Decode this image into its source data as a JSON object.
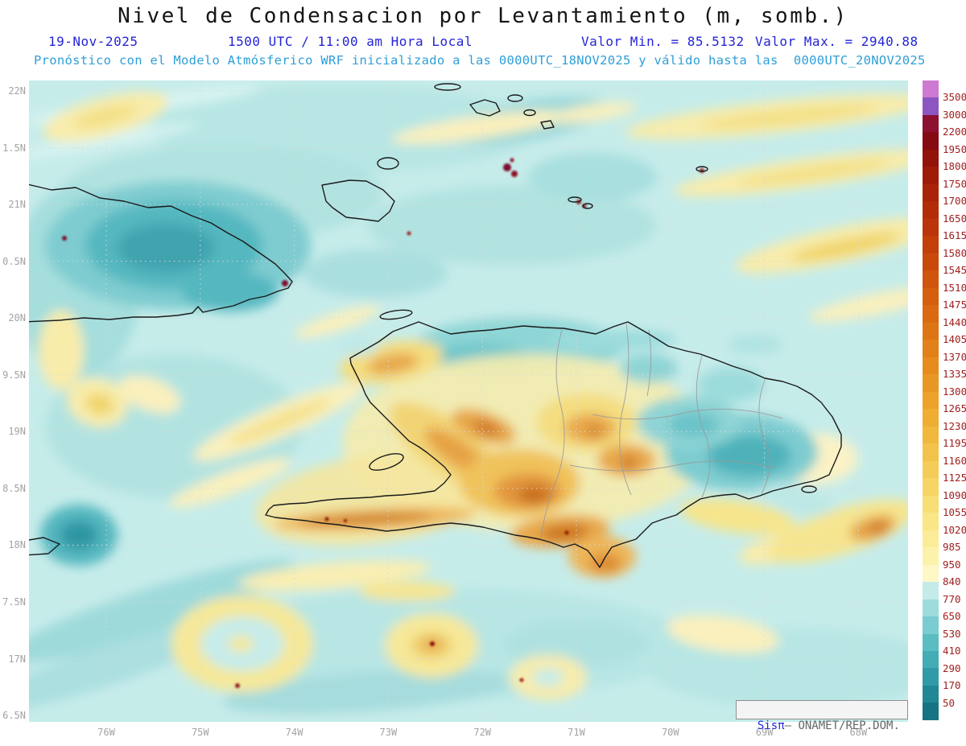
{
  "title": "Nivel de Condensacion por Levantamiento (m, somb.)",
  "header": {
    "date": "19-Nov-2025",
    "time": "1500 UTC / 11:00 am Hora Local",
    "min_label": "Valor Min. = 85.5132",
    "max_label": "Valor Max. = 2940.88",
    "forecast_line": "Pronóstico con el Modelo Atmósferico WRF inicializado a las 0000UTC_18NOV2025 y válido hasta las  0000UTC_20NOV2025"
  },
  "chart_data": {
    "type": "heatmap",
    "subtype": "filled-contour-weather-map",
    "title": "Nivel de Condensacion por Levantamiento (m, somb.)",
    "units": "m",
    "value_min": 85.5132,
    "value_max": 2940.88,
    "model": "WRF",
    "init": "0000UTC_18NOV2025",
    "valid_until": "0000UTC_20NOV2025",
    "x_ticks": [
      "76W",
      "75W",
      "74W",
      "73W",
      "72W",
      "71W",
      "70W",
      "69W",
      "68W"
    ],
    "y_ticks": [
      "22N",
      "1.5N",
      "21N",
      "0.5N",
      "20N",
      "9.5N",
      "19N",
      "8.5N",
      "18N",
      "7.5N",
      "17N",
      "6.5N"
    ],
    "colorbar": {
      "levels": [
        "3500",
        "3000",
        "2200",
        "1950",
        "1800",
        "1750",
        "1700",
        "1650",
        "1615",
        "1580",
        "1545",
        "1510",
        "1475",
        "1440",
        "1405",
        "1370",
        "1335",
        "1300",
        "1265",
        "1230",
        "1195",
        "1160",
        "1125",
        "1090",
        "1055",
        "1020",
        "985",
        "950",
        "840",
        "770",
        "650",
        "530",
        "410",
        "290",
        "170",
        "50"
      ],
      "colors": [
        "#ce79d2",
        "#8d55c2",
        "#8c1030",
        "#850b12",
        "#92130a",
        "#9e1b08",
        "#a82307",
        "#b22c08",
        "#ba3509",
        "#c23f0a",
        "#c9490b",
        "#cf540d",
        "#d55f0f",
        "#da6a12",
        "#de7515",
        "#e28019",
        "#e68b1e",
        "#e99724",
        "#eca22b",
        "#efad34",
        "#f1b83e",
        "#f3c24a",
        "#f5cc57",
        "#f7d565",
        "#f8de75",
        "#fae686",
        "#fbec98",
        "#fcf2ab",
        "#fdf8c6",
        "#c4ebe8",
        "#9cdcdc",
        "#79cccf",
        "#5bbcc2",
        "#43acb5",
        "#309aa6",
        "#228795",
        "#167382"
      ]
    }
  },
  "watermark": {
    "prefix": "Sis",
    "pi": "π",
    "suffix": "– ONAMET/REP.DOM."
  },
  "colors": {
    "header_blue": "#2424d8",
    "header_cyan": "#2f9fd8",
    "tick_gray": "#a3a3a3",
    "cb_label_red": "#a02020",
    "sea_base": "#c6ecea"
  }
}
